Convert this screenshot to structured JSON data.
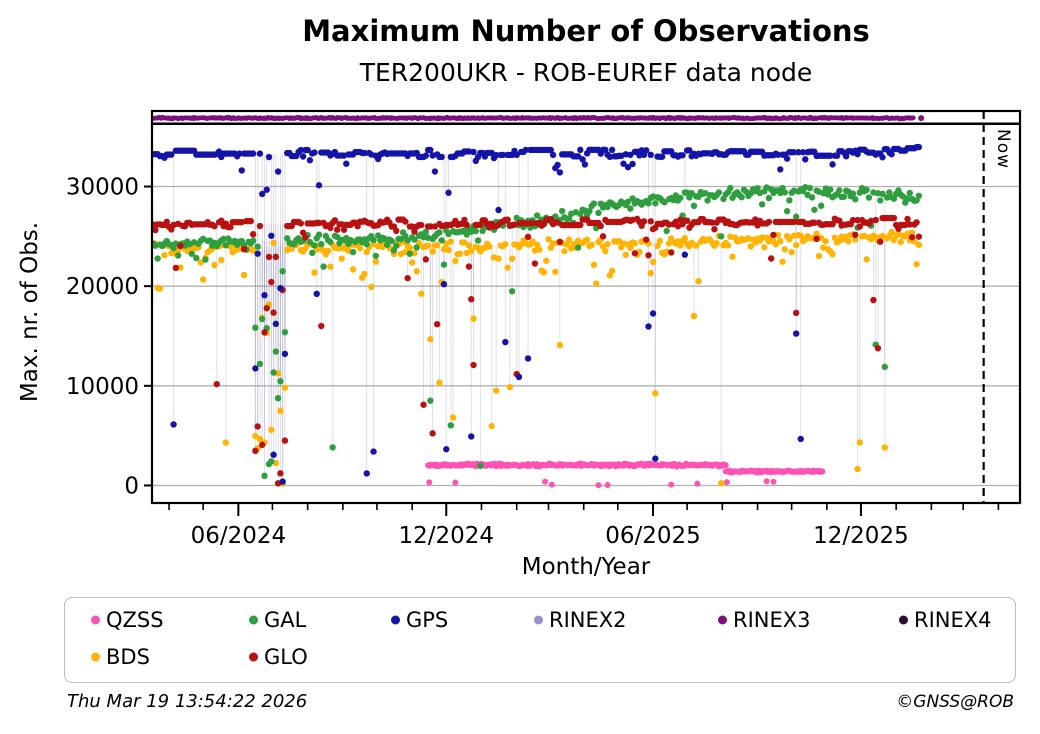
{
  "header": {
    "title": "Maximum Number of Observations",
    "subtitle": "TER200UKR - ROB-EUREF data node"
  },
  "footer": {
    "timestamp": "Thu Mar 19 13:54:22 2026",
    "credit": "©GNSS@ROB"
  },
  "chart_data": {
    "type": "scatter",
    "title": "Maximum Number of Observations",
    "subtitle": "TER200UKR - ROB-EUREF data node",
    "xlabel": "Month/Year",
    "ylabel": "Max. nr. of Obs.",
    "x_domain": [
      "2024-03-17",
      "2026-04-20"
    ],
    "y_domain": [
      -1760,
      37580
    ],
    "y_ticks": [
      0,
      10000,
      20000,
      30000
    ],
    "y_tick_labels": [
      "0",
      "10000",
      "20000",
      "30000"
    ],
    "x_major_ticks": [
      {
        "date": "2024-06-01",
        "label": "06/2024"
      },
      {
        "date": "2024-12-01",
        "label": "12/2024"
      },
      {
        "date": "2025-06-01",
        "label": "06/2025"
      },
      {
        "date": "2025-12-01",
        "label": "12/2025"
      }
    ],
    "x_minor_tick_interval": "month",
    "grid": true,
    "grid_color": "#b0b0b0",
    "now_marker": {
      "date": "2026-03-19",
      "label": "Now"
    },
    "divider_value": 36300,
    "baseline_outlier": {
      "prob": 0.015
    },
    "events": [
      {
        "from": "2024-06-15",
        "to": "2024-07-12",
        "prob": 0.9,
        "min": 0
      },
      {
        "from": "2024-11-08",
        "to": "2024-12-26",
        "prob": 0.1,
        "min": 0
      },
      {
        "from": "2024-12-28",
        "to": "2025-02-20",
        "prob": 0.09,
        "min": 800
      },
      {
        "from": "2025-05-26",
        "to": "2025-06-14",
        "prob": 0.09,
        "min": 0
      },
      {
        "from": "2025-07-02",
        "to": "2025-07-16",
        "prob": 0.1,
        "min": 10500
      },
      {
        "from": "2025-10-02",
        "to": "2025-10-14",
        "prob": 0.08,
        "min": 3500
      },
      {
        "from": "2025-11-16",
        "to": "2025-11-30",
        "prob": 0.12,
        "min": 0
      },
      {
        "from": "2025-12-12",
        "to": "2025-12-22",
        "prob": 0.1,
        "min": 3000
      }
    ],
    "series": [
      {
        "name": "QZSS",
        "color": "#ff52b5",
        "radius": 3.0,
        "step_days": 1,
        "immune": true,
        "segments": [
          {
            "from": "2024-11-15",
            "to": "2025-08-04",
            "level": 2050,
            "spread": 170
          },
          {
            "from": "2025-08-04",
            "to": "2025-10-28",
            "level": 1400,
            "spread": 130
          }
        ],
        "zeros": {
          "prob": 0.03,
          "max": 450
        }
      },
      {
        "name": "BDS",
        "color": "#ffb405",
        "radius": 3.2,
        "step_days": 2,
        "start": "2024-03-18",
        "end": "2026-01-22",
        "trend": [
          [
            "2024-03-18",
            23800
          ],
          [
            "2024-12-01",
            24100
          ],
          [
            "2025-06-01",
            24400
          ],
          [
            "2026-01-22",
            25100
          ]
        ],
        "spread": 600,
        "tail_prob": 0.3,
        "tail_depth": 5500
      },
      {
        "name": "GAL",
        "color": "#2f9e3f",
        "radius": 3.2,
        "step_days": 2,
        "start": "2024-03-18",
        "end": "2026-01-22",
        "trend": [
          [
            "2024-03-18",
            24300
          ],
          [
            "2024-11-01",
            24800
          ],
          [
            "2025-02-01",
            26300
          ],
          [
            "2025-06-01",
            28700
          ],
          [
            "2025-10-01",
            29700
          ],
          [
            "2026-01-22",
            28900
          ]
        ],
        "spread": 700,
        "tail_prob": 0.18,
        "tail_depth": 4500
      },
      {
        "name": "GLO",
        "color": "#b91111",
        "radius": 3.2,
        "step_days": 2,
        "start": "2024-03-18",
        "end": "2026-01-22",
        "hold": 0.45,
        "trend": [
          [
            "2024-03-18",
            26250
          ],
          [
            "2026-01-22",
            26500
          ]
        ],
        "spread": 380,
        "tail_prob": 0.13,
        "tail_depth": 5000
      },
      {
        "name": "GPS",
        "color": "#1414a8",
        "radius": 3.2,
        "step_days": 2,
        "start": "2024-03-18",
        "end": "2026-01-22",
        "hold": 0.3,
        "trend": [
          [
            "2024-03-18",
            33300
          ],
          [
            "2025-12-15",
            33350
          ],
          [
            "2026-01-22",
            33900
          ]
        ],
        "spread": 380,
        "tail_prob": 0.17,
        "tail_depth": 2300
      },
      {
        "name": "RINEX3",
        "color": "#7d107d",
        "radius": 2.4,
        "step_days": 1,
        "immune": true,
        "start": "2024-03-18",
        "end": "2026-01-16",
        "trend": [
          [
            "2024-03-18",
            36870
          ],
          [
            "2026-01-16",
            36870
          ]
        ],
        "spread": 90,
        "tail_prob": 0,
        "tail_depth": 0,
        "extra_points": [
          [
            "2026-01-23",
            36870
          ]
        ]
      }
    ],
    "legend": {
      "position": "bottom",
      "rows": 2,
      "columns": 6,
      "items": [
        {
          "label": "QZSS",
          "color": "#ff52b5"
        },
        {
          "label": "GAL",
          "color": "#2f9e3f"
        },
        {
          "label": "GPS",
          "color": "#1414a8"
        },
        {
          "label": "RINEX2",
          "color": "#9390d2"
        },
        {
          "label": "RINEX3",
          "color": "#7d107d"
        },
        {
          "label": "RINEX4",
          "color": "#2d0f33"
        },
        {
          "label": "BDS",
          "color": "#ffb405"
        },
        {
          "label": "GLO",
          "color": "#b91111"
        }
      ]
    }
  }
}
